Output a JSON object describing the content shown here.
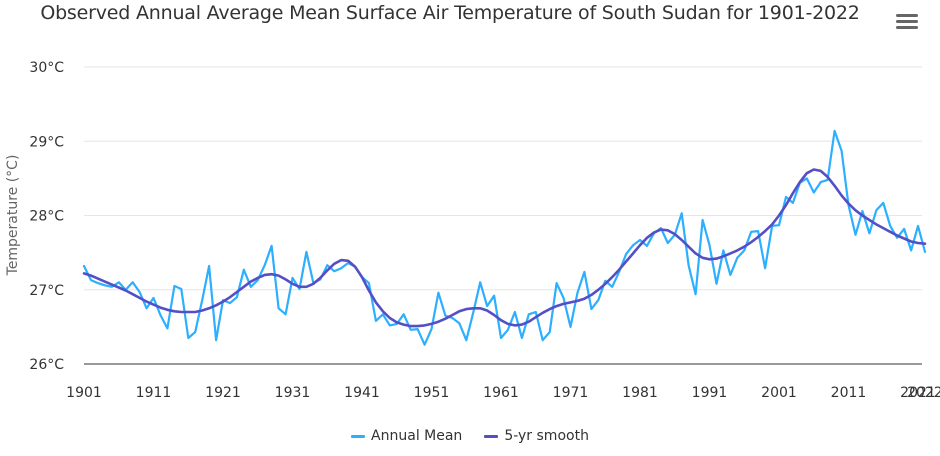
{
  "chart_data": {
    "type": "line",
    "title": "Observed Annual Average Mean Surface Air Temperature of South Sudan for 1901-2022",
    "xlabel": "",
    "ylabel": "Temperature (°C)",
    "ylim": [
      26,
      30
    ],
    "xlim": [
      1901,
      2022
    ],
    "yticks": [
      26,
      27,
      28,
      29,
      30
    ],
    "ytick_labels": [
      "26°C",
      "27°C",
      "28°C",
      "29°C",
      "30°C"
    ],
    "xticks": [
      1901,
      1911,
      1921,
      1931,
      1941,
      1951,
      1961,
      1971,
      1981,
      1991,
      2001,
      2011,
      2021,
      2022
    ],
    "xtick_labels": [
      "1901",
      "1911",
      "1921",
      "1931",
      "1941",
      "1951",
      "1961",
      "1971",
      "1981",
      "1991",
      "2001",
      "2011",
      "2021",
      "2022"
    ],
    "grid": true,
    "legend_position": "bottom-center",
    "x_start": 1901,
    "series": [
      {
        "name": "Annual Mean",
        "color": "#2caffe",
        "values": [
          27.32,
          27.13,
          27.09,
          27.06,
          27.04,
          27.1,
          27.0,
          27.1,
          26.97,
          26.75,
          26.89,
          26.66,
          26.48,
          27.05,
          27.01,
          26.35,
          26.43,
          26.86,
          27.32,
          26.32,
          26.86,
          26.82,
          26.9,
          27.27,
          27.04,
          27.13,
          27.33,
          27.59,
          26.75,
          26.67,
          27.16,
          27.01,
          27.51,
          27.09,
          27.14,
          27.33,
          27.25,
          27.29,
          27.36,
          27.31,
          27.17,
          27.09,
          26.58,
          26.67,
          26.52,
          26.54,
          26.67,
          26.46,
          26.47,
          26.26,
          26.47,
          26.96,
          26.65,
          26.62,
          26.55,
          26.32,
          26.69,
          27.1,
          26.78,
          26.92,
          26.35,
          26.46,
          26.7,
          26.35,
          26.67,
          26.7,
          26.32,
          26.43,
          27.09,
          26.89,
          26.5,
          26.96,
          27.24,
          26.74,
          26.86,
          27.12,
          27.04,
          27.24,
          27.48,
          27.6,
          27.67,
          27.59,
          27.76,
          27.83,
          27.63,
          27.74,
          28.03,
          27.33,
          26.94,
          27.94,
          27.6,
          27.08,
          27.53,
          27.2,
          27.43,
          27.53,
          27.78,
          27.79,
          27.29,
          27.86,
          27.87,
          28.25,
          28.17,
          28.44,
          28.5,
          28.31,
          28.45,
          28.48,
          29.14,
          28.87,
          28.14,
          27.74,
          28.06,
          27.76,
          28.07,
          28.17,
          27.86,
          27.7,
          27.82,
          27.53,
          27.86,
          27.51
        ]
      },
      {
        "name": "5-yr smooth",
        "color": "#544fc5",
        "values": [
          27.22,
          27.19,
          27.15,
          27.11,
          27.07,
          27.03,
          26.99,
          26.94,
          26.89,
          26.84,
          26.8,
          26.76,
          26.73,
          26.71,
          26.7,
          26.7,
          26.7,
          26.72,
          26.75,
          26.79,
          26.84,
          26.9,
          26.97,
          27.04,
          27.11,
          27.16,
          27.2,
          27.21,
          27.19,
          27.14,
          27.08,
          27.04,
          27.04,
          27.08,
          27.16,
          27.26,
          27.35,
          27.4,
          27.39,
          27.31,
          27.17,
          26.99,
          26.83,
          26.71,
          26.62,
          26.56,
          26.53,
          26.51,
          26.51,
          26.52,
          26.54,
          26.57,
          26.61,
          26.66,
          26.71,
          26.74,
          26.75,
          26.75,
          26.72,
          26.66,
          26.59,
          26.54,
          26.52,
          26.53,
          26.57,
          26.63,
          26.69,
          26.74,
          26.78,
          26.81,
          26.83,
          26.85,
          26.88,
          26.93,
          27.0,
          27.08,
          27.17,
          27.27,
          27.38,
          27.49,
          27.6,
          27.7,
          27.77,
          27.81,
          27.8,
          27.75,
          27.67,
          27.58,
          27.49,
          27.43,
          27.41,
          27.42,
          27.45,
          27.49,
          27.53,
          27.58,
          27.64,
          27.71,
          27.79,
          27.88,
          28.0,
          28.14,
          28.3,
          28.45,
          28.57,
          28.62,
          28.6,
          28.52,
          28.4,
          28.27,
          28.16,
          28.07,
          28.0,
          27.94,
          27.88,
          27.83,
          27.78,
          27.73,
          27.69,
          27.65,
          27.63,
          27.62
        ]
      }
    ]
  },
  "toolbar": {
    "menu_icon": "hamburger-menu-icon"
  }
}
